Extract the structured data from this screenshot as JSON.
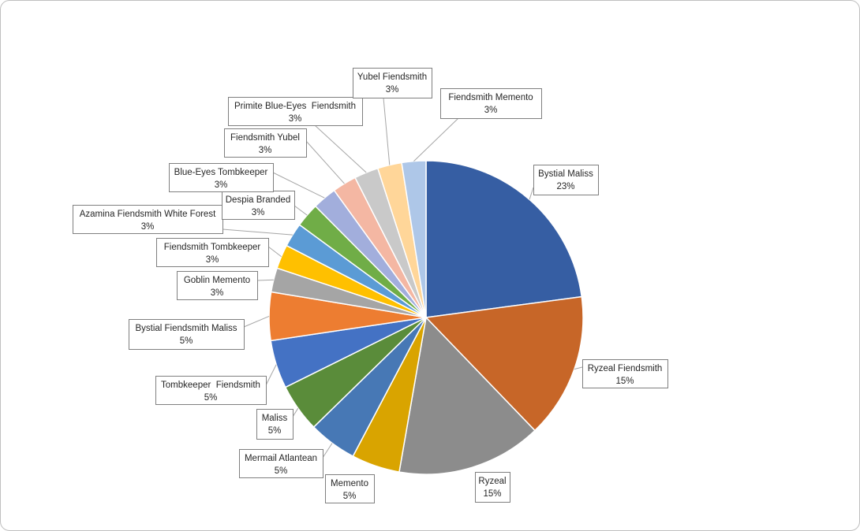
{
  "chart_data": {
    "type": "pie",
    "title": "",
    "start_angle_deg": 0,
    "direction": "clockwise",
    "slices": [
      {
        "name": "Bystial Maliss",
        "value": 23,
        "label": "23%",
        "color": "#365ea3"
      },
      {
        "name": "Ryzeal Fiendsmith",
        "value": 15,
        "label": "15%",
        "color": "#c76628"
      },
      {
        "name": "Ryzeal",
        "value": 15,
        "label": "15%",
        "color": "#8c8c8c"
      },
      {
        "name": "Memento",
        "value": 5,
        "label": "5%",
        "color": "#d9a400"
      },
      {
        "name": "Mermail Atlantean",
        "value": 5,
        "label": "5%",
        "color": "#4778b5"
      },
      {
        "name": "Maliss",
        "value": 5,
        "label": "5%",
        "color": "#5a8c3a"
      },
      {
        "name": "Tombkeeper  Fiendsmith",
        "value": 5,
        "label": "5%",
        "color": "#4472c4"
      },
      {
        "name": "Bystial Fiendsmith Maliss",
        "value": 5,
        "label": "5%",
        "color": "#ed7d31"
      },
      {
        "name": "Goblin Memento",
        "value": 2.5,
        "label": "3%",
        "color": "#a5a5a5"
      },
      {
        "name": "Fiendsmith Tombkeeper",
        "value": 2.5,
        "label": "3%",
        "color": "#ffc000"
      },
      {
        "name": "Azamina Fiendsmith White Forest",
        "value": 2.5,
        "label": "3%",
        "color": "#5b9bd5"
      },
      {
        "name": "Despia Branded",
        "value": 2.5,
        "label": "3%",
        "color": "#70ad47"
      },
      {
        "name": "Blue-Eyes Tombkeeper",
        "value": 2.5,
        "label": "3%",
        "color": "#a2aedc"
      },
      {
        "name": "Fiendsmith Yubel",
        "value": 2.5,
        "label": "3%",
        "color": "#f4b7a3"
      },
      {
        "name": "Primite Blue-Eyes  Fiendsmith",
        "value": 2.5,
        "label": "3%",
        "color": "#c9c9c9"
      },
      {
        "name": "Yubel Fiendsmith",
        "value": 2.5,
        "label": "3%",
        "color": "#ffd699"
      },
      {
        "name": "Fiendsmith Memento",
        "value": 2.5,
        "label": "3%",
        "color": "#aec7e8"
      }
    ]
  }
}
